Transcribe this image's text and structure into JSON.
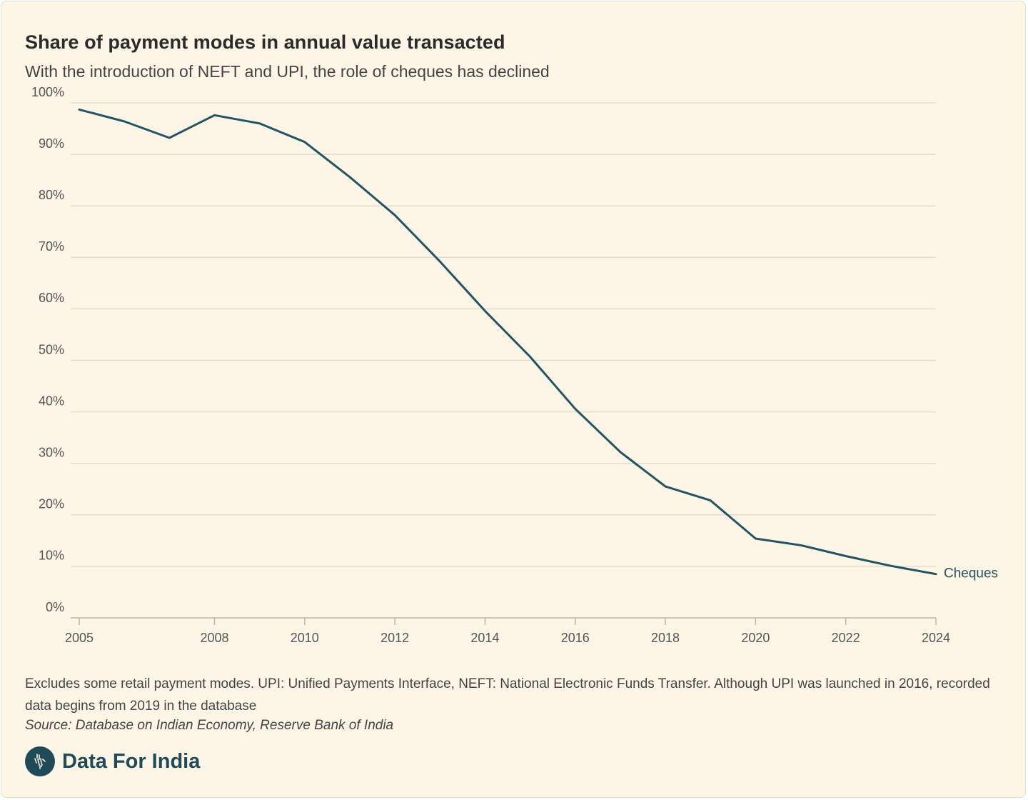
{
  "header": {
    "title": "Share of payment modes in annual value transacted",
    "subtitle": "With the introduction of NEFT and UPI, the role of cheques has declined"
  },
  "chart_data": {
    "type": "line",
    "title": "Share of payment modes in annual value transacted",
    "subtitle": "With the introduction of NEFT and UPI, the role of cheques has declined",
    "xlabel": "",
    "ylabel": "",
    "xlim": [
      2005,
      2024
    ],
    "ylim": [
      0,
      100
    ],
    "x_ticks": [
      2005,
      2008,
      2010,
      2012,
      2014,
      2016,
      2018,
      2020,
      2022,
      2024
    ],
    "y_ticks": [
      0,
      10,
      20,
      30,
      40,
      50,
      60,
      70,
      80,
      90,
      100
    ],
    "y_tick_labels": [
      "0%",
      "10%",
      "20%",
      "30%",
      "40%",
      "50%",
      "60%",
      "70%",
      "80%",
      "90%",
      "100%"
    ],
    "grid": true,
    "series": [
      {
        "name": "Cheques",
        "color": "#245463",
        "x": [
          2005,
          2006,
          2007,
          2008,
          2009,
          2010,
          2011,
          2012,
          2013,
          2014,
          2015,
          2016,
          2017,
          2018,
          2019,
          2020,
          2021,
          2022,
          2023,
          2024
        ],
        "values": [
          98.7,
          96.4,
          93.2,
          97.6,
          96.0,
          92.4,
          85.6,
          78.2,
          69.2,
          59.6,
          50.7,
          40.6,
          32.2,
          25.5,
          22.8,
          15.4,
          14.1,
          12.0,
          10.1,
          8.5
        ]
      }
    ]
  },
  "footer": {
    "note": "Excludes some retail payment modes. UPI: Unified Payments Interface, NEFT: National Electronic Funds Transfer. Although UPI was launched in 2016, recorded data begins from 2019 in the database",
    "source": "Source: Database on Indian Economy, Reserve Bank of India",
    "brand": "Data For India"
  },
  "colors": {
    "background": "#fdf5e6",
    "line": "#245463",
    "grid": "#e3dccd",
    "brand": "#1f4a57"
  },
  "icons": {
    "logo": "india-map-logo-icon"
  }
}
